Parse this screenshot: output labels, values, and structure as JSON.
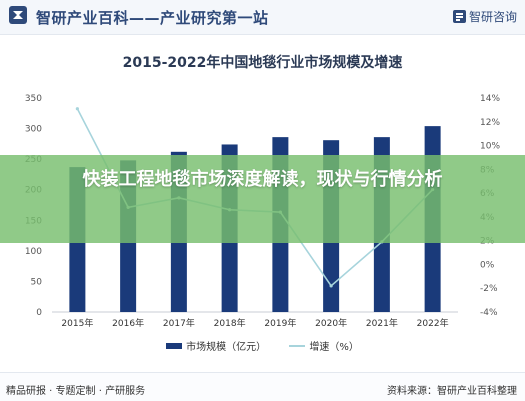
{
  "header": {
    "site_title": "智研产业百科——产业研究第一站",
    "brand": "智研咨询"
  },
  "overlay": {
    "headline": "快装工程地毯市场深度解读，现状与行情分析"
  },
  "footer": {
    "left": "精品研报 · 专题定制 · 产研服务",
    "right": "资料来源：智研产业百科整理"
  },
  "colors": {
    "bar": "#1a3a7a",
    "line": "#a7d4dc",
    "overlay": "#78be6e"
  },
  "chart_data": {
    "type": "bar",
    "title": "2015-2022年中国地毯行业市场规模及增速",
    "categories": [
      "2015年",
      "2016年",
      "2017年",
      "2018年",
      "2019年",
      "2020年",
      "2021年",
      "2022年"
    ],
    "series": [
      {
        "name": "市场规模（亿元）",
        "type": "bar",
        "axis": "left",
        "values": [
          237,
          248,
          262,
          274,
          286,
          281,
          286,
          304
        ]
      },
      {
        "name": "增速（%）",
        "type": "line",
        "axis": "right",
        "values": [
          13.1,
          4.8,
          5.6,
          4.6,
          4.4,
          -1.8,
          1.9,
          6.3
        ]
      }
    ],
    "left_axis": {
      "min": 0,
      "max": 350,
      "ticks": [
        0,
        50,
        100,
        150,
        200,
        250,
        300,
        350
      ]
    },
    "right_axis": {
      "min": -4,
      "max": 14,
      "ticks": [
        "-4%",
        "-2%",
        "0%",
        "2%",
        "4%",
        "6%",
        "8%",
        "10%",
        "12%",
        "14%"
      ]
    },
    "legend": {
      "position": "bottom",
      "bar_label": "市场规模（亿元）",
      "line_label": "增速（%）"
    },
    "grid": false
  }
}
